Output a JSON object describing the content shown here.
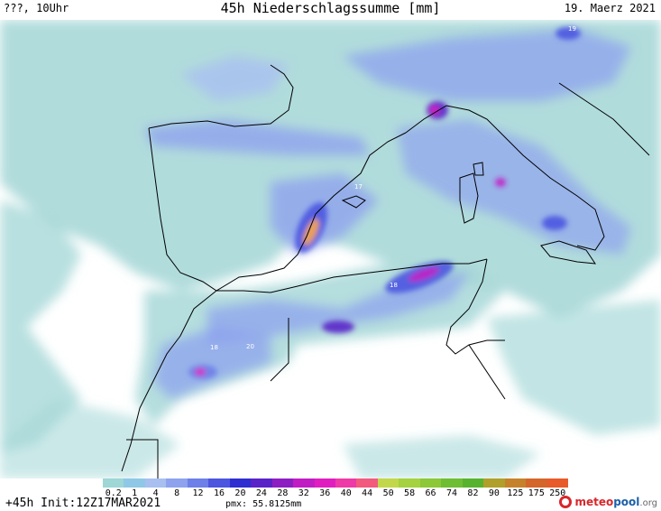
{
  "header": {
    "left": "???, 10Uhr",
    "title": "45h Niederschlagssumme [mm]",
    "right": "19. Maerz 2021"
  },
  "map": {
    "sea_color": "#ffffff",
    "contour_labels": [
      "19",
      "17",
      "18",
      "18",
      "20"
    ]
  },
  "legend": {
    "values": [
      "0.2",
      "1",
      "4",
      "8",
      "12",
      "16",
      "20",
      "24",
      "28",
      "32",
      "36",
      "40",
      "44",
      "50",
      "58",
      "66",
      "74",
      "82",
      "90",
      "125",
      "175",
      "250"
    ],
    "colors": [
      "#9fd6d6",
      "#8fc8e6",
      "#a9bff0",
      "#8ea2ee",
      "#6d7fe8",
      "#4b55e0",
      "#2f2ed0",
      "#5a23c8",
      "#8d1fc2",
      "#c01ec4",
      "#e01ec0",
      "#ee3aa6",
      "#f25a7e",
      "#c2d84a",
      "#a5d23e",
      "#8cc838",
      "#6fbd32",
      "#58b22e",
      "#b0a02a",
      "#c6822a",
      "#d4662a",
      "#e85a2a"
    ]
  },
  "footer": {
    "run": "+45h Init:12Z17MAR2021",
    "pmx": "pmx: 55.8125mm",
    "brand_a": "meteo",
    "brand_b": "pool",
    "brand_c": ".org"
  }
}
